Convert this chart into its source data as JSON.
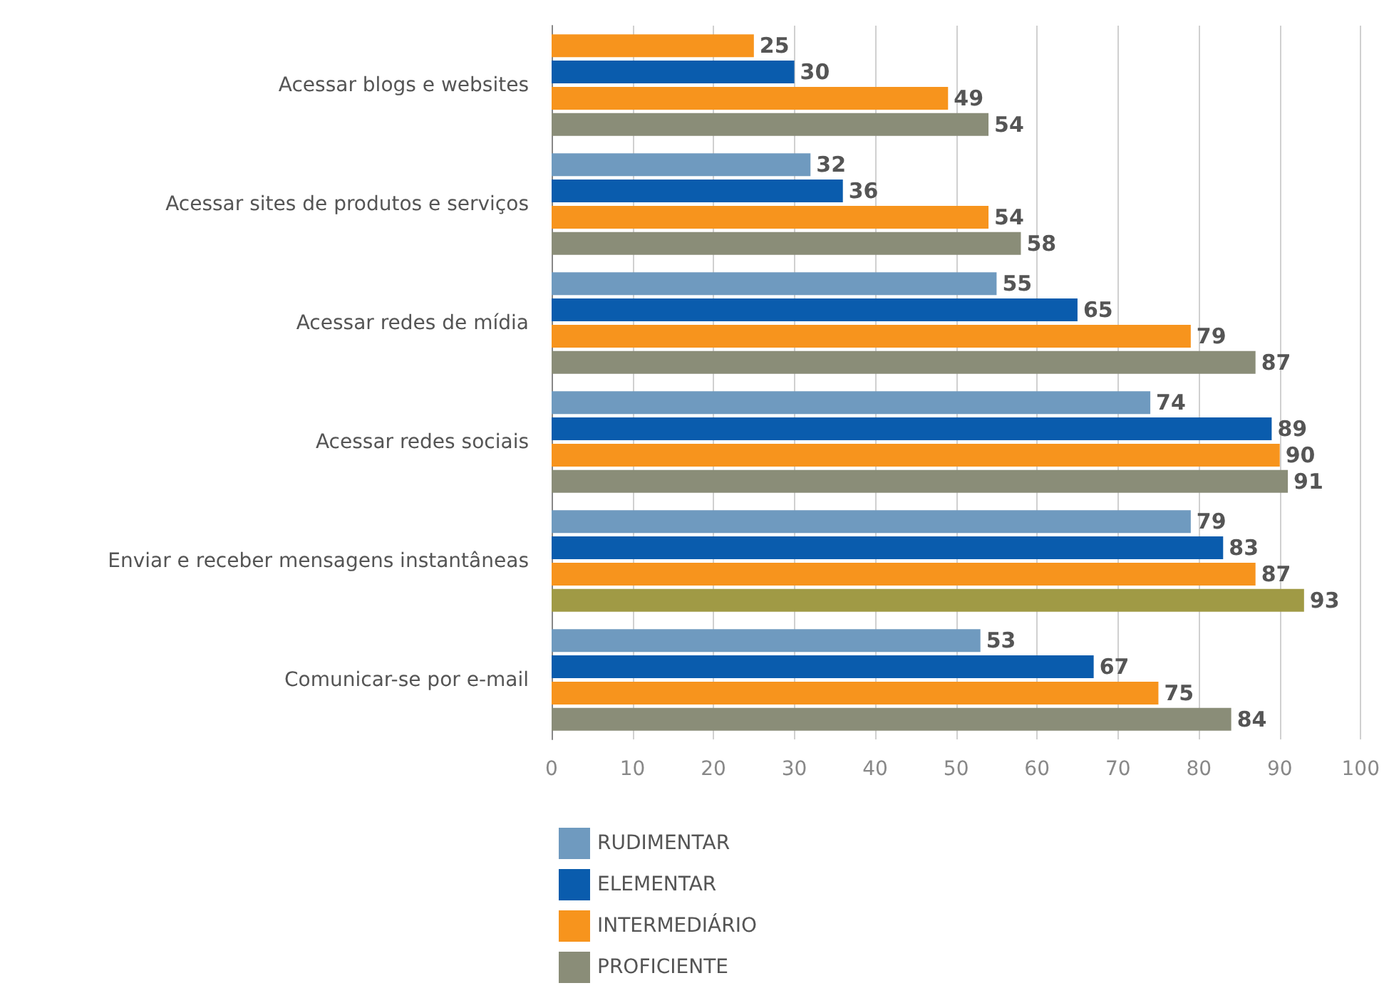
{
  "chart_data": {
    "type": "bar",
    "orientation": "horizontal",
    "categories": [
      "Acessar blogs e websites",
      "Acessar sites de produtos e serviços",
      "Acessar redes de mídia",
      "Acessar redes sociais",
      "Enviar e receber mensagens instantâneas",
      "Comunicar-se por e-mail"
    ],
    "series": [
      {
        "name": "RUDIMENTAR",
        "color": "#6f9abf",
        "colors": [
          "#f7941d",
          "#6f9abf",
          "#6f9abf",
          "#6f9abf",
          "#6f9abf",
          "#6f9abf"
        ],
        "values": [
          25,
          32,
          55,
          74,
          79,
          53
        ]
      },
      {
        "name": "ELEMENTAR",
        "color": "#0a5cad",
        "values": [
          30,
          36,
          65,
          89,
          83,
          67
        ]
      },
      {
        "name": "INTERMEDIÁRIO",
        "color": "#f7941d",
        "values": [
          49,
          54,
          79,
          90,
          87,
          75
        ]
      },
      {
        "name": "PROFICIENTE",
        "color": "#8a8d78",
        "colors": [
          "#8a8d78",
          "#8a8d78",
          "#8a8d78",
          "#8a8d78",
          "#a09a45",
          "#8a8d78"
        ],
        "values": [
          54,
          58,
          87,
          91,
          93,
          84
        ]
      }
    ],
    "xlim": [
      0,
      100
    ],
    "xticks": [
      0,
      10,
      20,
      30,
      40,
      50,
      60,
      70,
      80,
      90,
      100
    ],
    "grid": "x",
    "legend": "bottom left",
    "data_labels": true
  }
}
